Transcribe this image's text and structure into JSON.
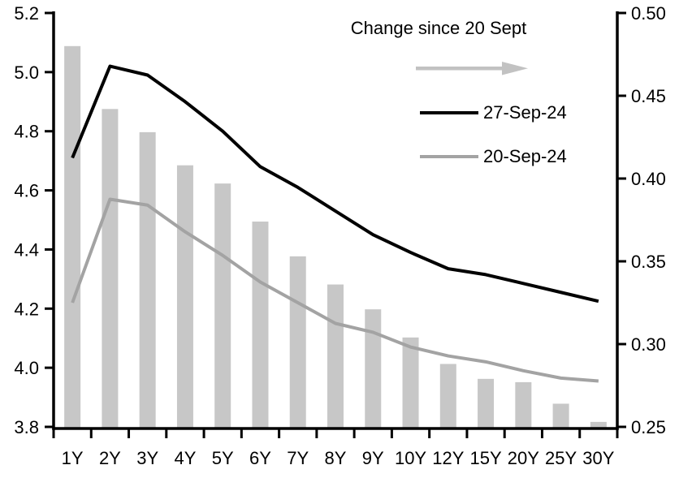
{
  "legend": {
    "note": "Change since 20 Sept",
    "series_27": "27-Sep-24",
    "series_20": "20-Sep-24"
  },
  "colors": {
    "background": "#ffffff",
    "axis": "#000000",
    "text": "#000000",
    "bar": "#c7c7c7",
    "line_27": "#000000",
    "line_20": "#a3a3a3",
    "arrow": "#c2c2c2"
  },
  "chart_data": {
    "type": "combo-bar-line",
    "categories": [
      "1Y",
      "2Y",
      "3Y",
      "4Y",
      "5Y",
      "6Y",
      "7Y",
      "8Y",
      "9Y",
      "10Y",
      "12Y",
      "15Y",
      "20Y",
      "25Y",
      "30Y"
    ],
    "series": [
      {
        "name": "27-Sep-24",
        "type": "line",
        "axis": "left",
        "color_key": "line_27",
        "values": [
          4.71,
          5.02,
          4.99,
          4.9,
          4.8,
          4.68,
          4.61,
          4.53,
          4.45,
          4.39,
          4.335,
          4.315,
          4.285,
          4.255,
          4.225
        ]
      },
      {
        "name": "20-Sep-24",
        "type": "line",
        "axis": "left",
        "color_key": "line_20",
        "values": [
          4.22,
          4.57,
          4.55,
          4.46,
          4.38,
          4.29,
          4.22,
          4.15,
          4.12,
          4.07,
          4.04,
          4.02,
          3.99,
          3.965,
          3.955
        ]
      },
      {
        "name": "Change since 20 Sept",
        "type": "bar",
        "axis": "right",
        "color_key": "bar",
        "values": [
          0.48,
          0.442,
          0.428,
          0.408,
          0.397,
          0.374,
          0.353,
          0.336,
          0.321,
          0.304,
          0.288,
          0.279,
          0.277,
          0.264,
          0.253
        ]
      }
    ],
    "left_axis": {
      "min": 3.8,
      "max": 5.2,
      "ticks": [
        5.2,
        5.0,
        4.8,
        4.6,
        4.4,
        4.2,
        4.0,
        3.8
      ],
      "tick_labels": [
        "5.2",
        "5.0",
        "4.8",
        "4.6",
        "4.4",
        "4.2",
        "4.0",
        "3.8"
      ]
    },
    "right_axis": {
      "min": 0.25,
      "max": 0.5,
      "ticks": [
        0.5,
        0.45,
        0.4,
        0.35,
        0.3,
        0.25
      ],
      "tick_labels": [
        "0.50",
        "0.45",
        "0.40",
        "0.35",
        "0.30",
        "0.25"
      ]
    },
    "grid": false,
    "legend_position": "inside-top-center"
  }
}
